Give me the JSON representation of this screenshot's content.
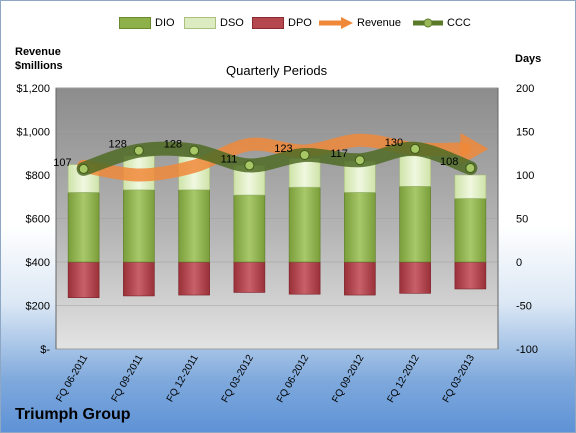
{
  "chart_data": {
    "type": "bar",
    "title": "Quarterly Periods",
    "company": "Triumph Group",
    "ylabel_left": "Revenue $millions",
    "ylabel_right": "Days",
    "categories": [
      "FQ 06-2011",
      "FQ 09-2011",
      "FQ 12-2011",
      "FQ 03-2012",
      "FQ 06-2012",
      "FQ 09-2012",
      "FQ 12-2012",
      "FQ 03-2013"
    ],
    "left_axis": {
      "ticks": [
        "$-",
        "$200",
        "$400",
        "$600",
        "$800",
        "$1,000",
        "$1,200"
      ],
      "range": [
        0,
        1200
      ]
    },
    "right_axis": {
      "ticks": [
        "-100",
        "-50",
        "0",
        "50",
        "100",
        "150",
        "200"
      ],
      "range": [
        -100,
        200
      ]
    },
    "series": [
      {
        "name": "DIO",
        "axis": "days",
        "color": "#8db04a",
        "values": [
          80,
          83,
          83,
          77,
          86,
          80,
          87,
          73
        ]
      },
      {
        "name": "DSO",
        "axis": "days",
        "color": "#dcebc0",
        "values": [
          32,
          39,
          38,
          34,
          33,
          36,
          35,
          27
        ]
      },
      {
        "name": "DPO",
        "axis": "days",
        "color": "#b5474f",
        "values": [
          -41,
          -39,
          -38,
          -35,
          -37,
          -38,
          -36,
          -31
        ]
      },
      {
        "name": "Revenue",
        "axis": "revenue",
        "color": "#f0883a",
        "values": [
          840,
          800,
          840,
          940,
          910,
          960,
          920,
          920
        ]
      },
      {
        "name": "CCC",
        "axis": "days",
        "color": "#5a7a2a",
        "values": [
          107,
          128,
          128,
          111,
          123,
          117,
          130,
          108
        ]
      }
    ],
    "data_labels": [
      "107",
      "128",
      "128",
      "111",
      "123",
      "117",
      "130",
      "108"
    ],
    "legend_position": "top"
  }
}
